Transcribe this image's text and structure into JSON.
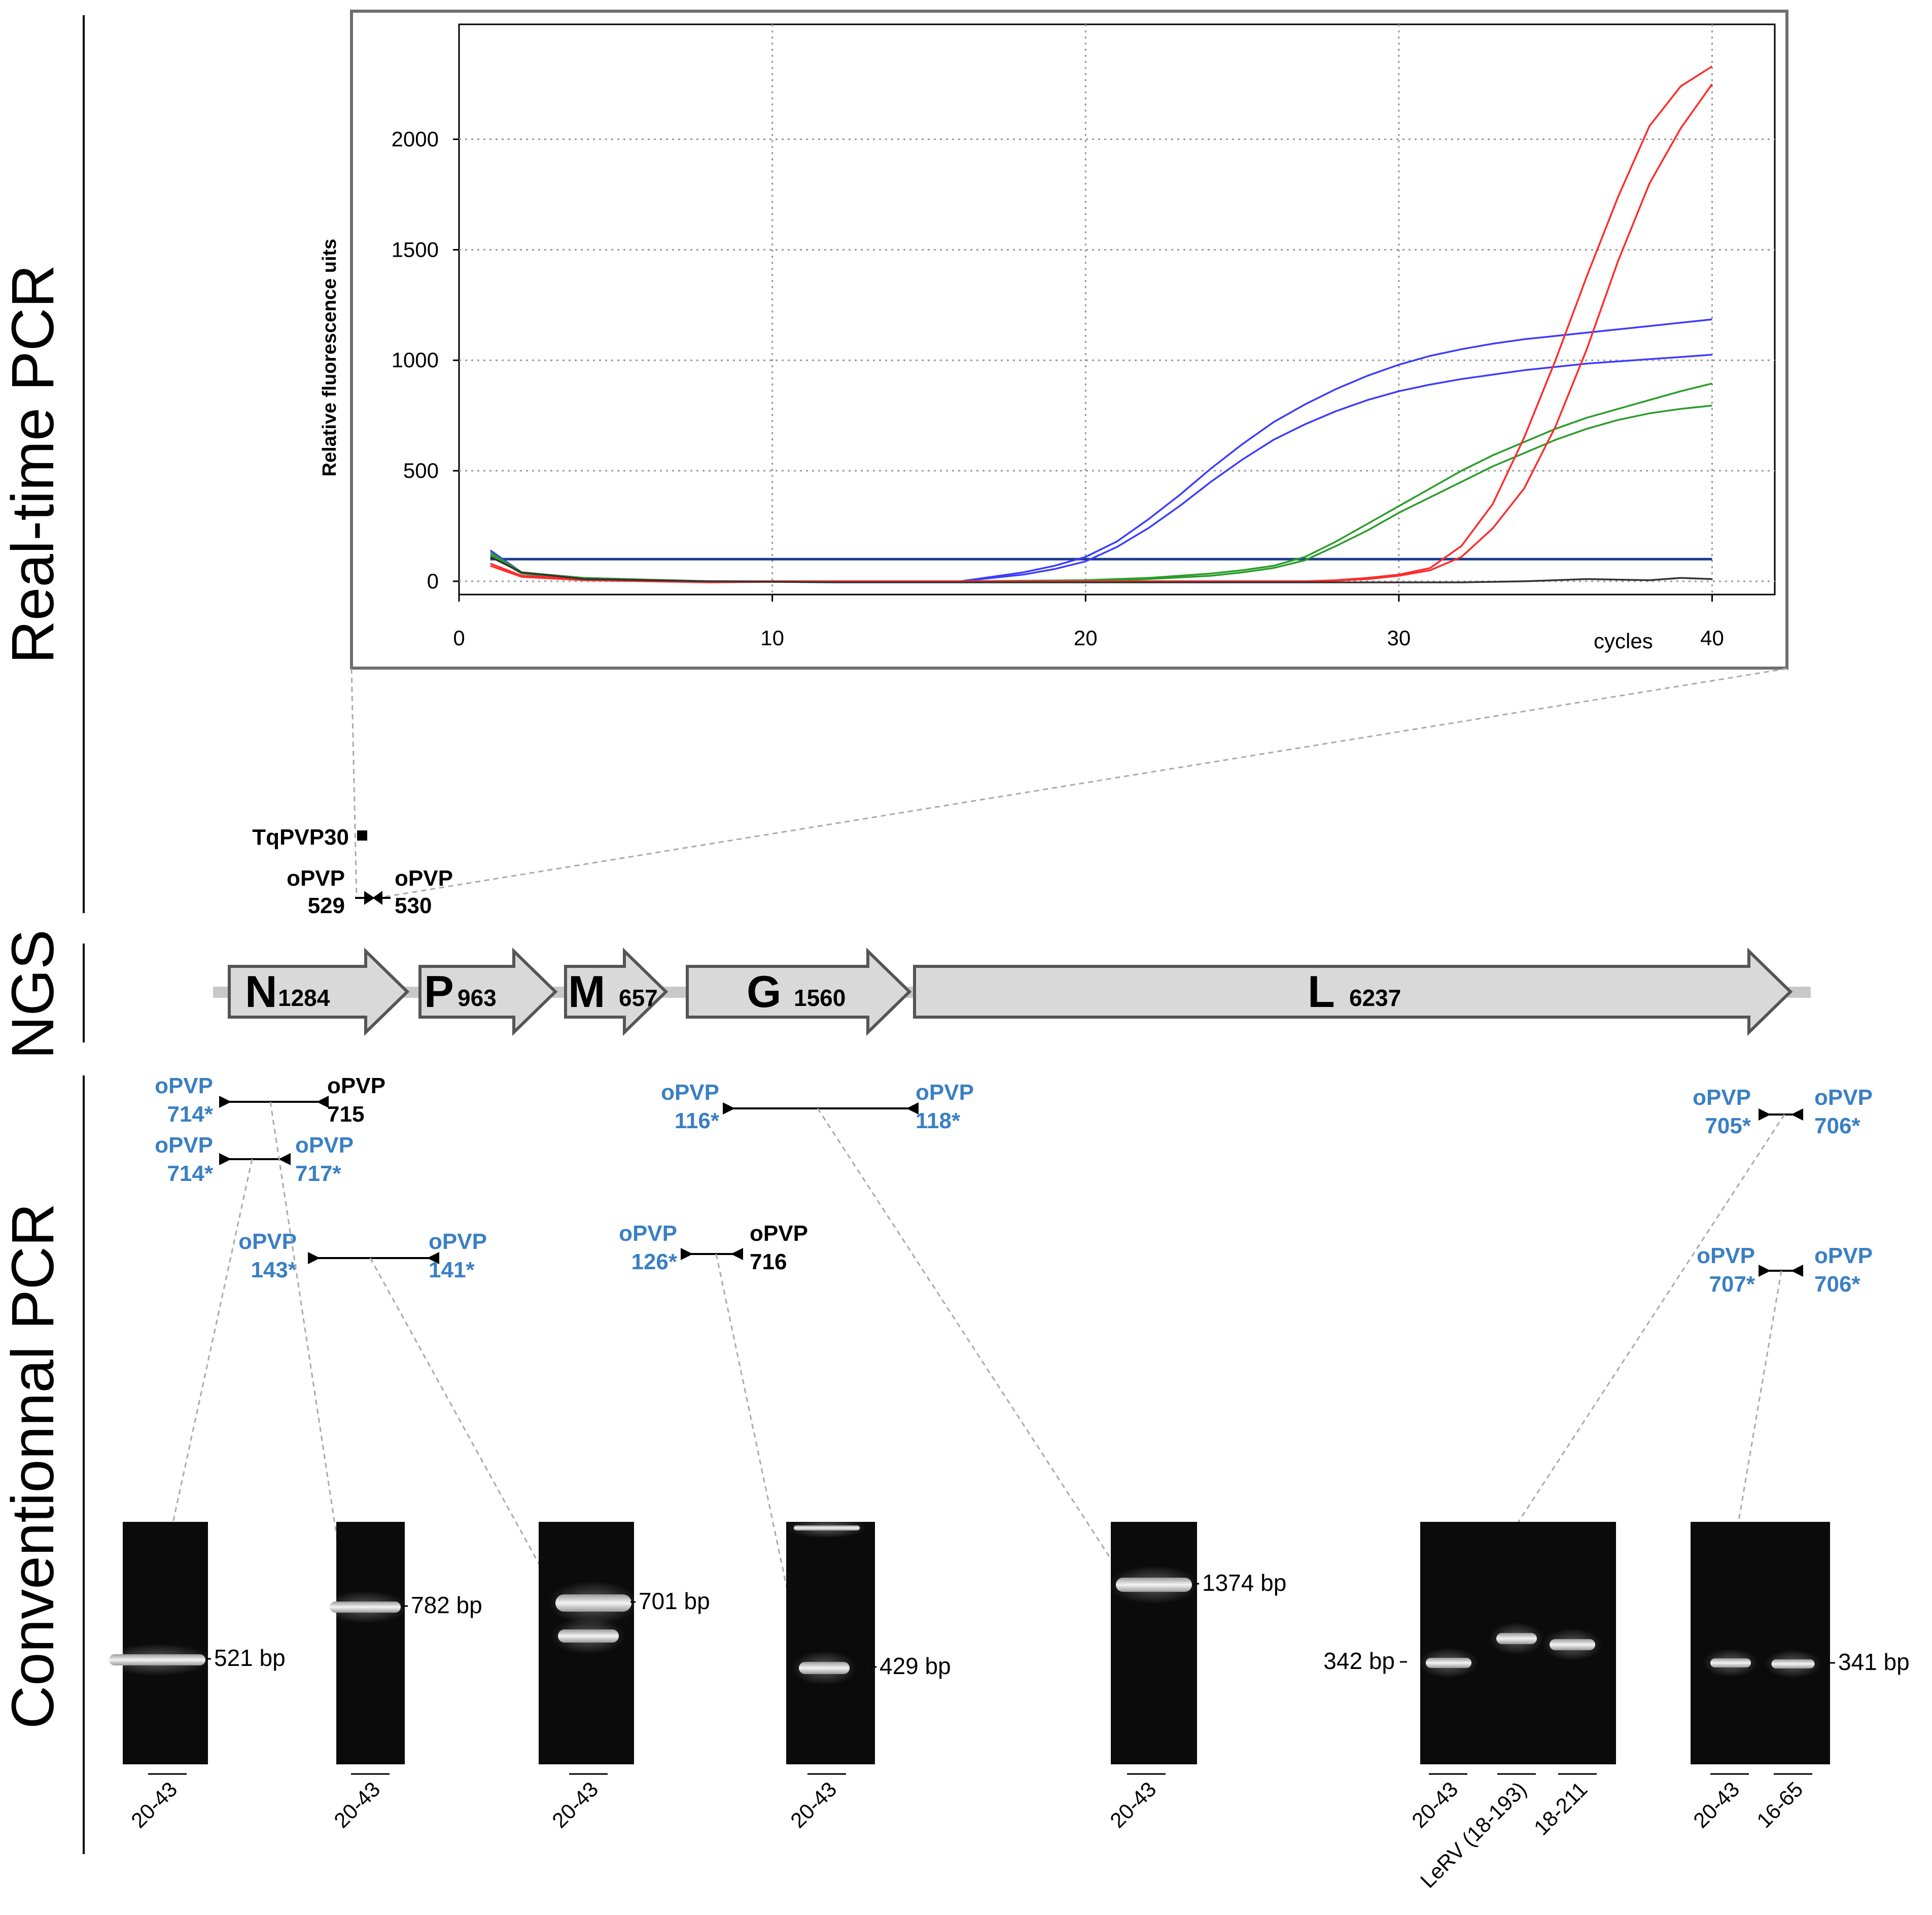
{
  "sections": {
    "realtime": "Real-time PCR",
    "ngs": "NGS",
    "conventional": "Conventionnal PCR"
  },
  "chart_data": {
    "type": "line",
    "xlabel": "cycles",
    "ylabel": "Relative fluorescence uits",
    "xlim": [
      0,
      42
    ],
    "ylim": [
      -60,
      2520
    ],
    "xticks": [
      0,
      10,
      20,
      30,
      40
    ],
    "yticks": [
      0,
      500,
      1000,
      1500,
      2000
    ],
    "grid": true,
    "threshold": 100,
    "series": [
      {
        "color": "#3c3cff",
        "x": [
          1,
          2,
          4,
          8,
          12,
          16,
          18,
          19,
          20,
          21,
          22,
          23,
          24,
          25,
          26,
          27,
          28,
          29,
          30,
          31,
          32,
          33,
          34,
          35,
          36,
          37,
          38,
          39,
          40
        ],
        "values": [
          140,
          40,
          15,
          0,
          0,
          0,
          40,
          70,
          110,
          180,
          280,
          390,
          510,
          620,
          720,
          800,
          870,
          930,
          980,
          1020,
          1050,
          1075,
          1095,
          1110,
          1125,
          1140,
          1155,
          1170,
          1185
        ]
      },
      {
        "color": "#3c3cff",
        "x": [
          1,
          2,
          4,
          8,
          12,
          16,
          18,
          19,
          20,
          21,
          22,
          23,
          24,
          25,
          26,
          27,
          28,
          29,
          30,
          31,
          32,
          33,
          34,
          35,
          36,
          37,
          38,
          39,
          40
        ],
        "values": [
          120,
          35,
          10,
          0,
          0,
          0,
          30,
          55,
          90,
          155,
          240,
          340,
          450,
          550,
          640,
          710,
          770,
          820,
          860,
          890,
          915,
          935,
          955,
          970,
          985,
          995,
          1005,
          1015,
          1025
        ]
      },
      {
        "color": "#2a9c2a",
        "x": [
          1,
          2,
          4,
          8,
          12,
          16,
          20,
          22,
          24,
          25,
          26,
          27,
          28,
          29,
          30,
          31,
          32,
          33,
          34,
          35,
          36,
          37,
          38,
          39,
          40
        ],
        "values": [
          130,
          40,
          15,
          0,
          0,
          0,
          5,
          15,
          35,
          50,
          70,
          110,
          180,
          260,
          340,
          420,
          500,
          570,
          630,
          690,
          740,
          780,
          820,
          860,
          895
        ]
      },
      {
        "color": "#2a9c2a",
        "x": [
          1,
          2,
          4,
          8,
          12,
          16,
          20,
          22,
          24,
          25,
          26,
          27,
          28,
          29,
          30,
          31,
          32,
          33,
          34,
          35,
          36,
          37,
          38,
          39,
          40
        ],
        "values": [
          120,
          35,
          12,
          0,
          0,
          0,
          0,
          10,
          25,
          40,
          60,
          95,
          160,
          230,
          310,
          380,
          450,
          520,
          580,
          640,
          690,
          730,
          760,
          780,
          795
        ]
      },
      {
        "color": "#ff2a2a",
        "x": [
          1,
          2,
          4,
          8,
          12,
          16,
          20,
          24,
          27,
          28,
          29,
          30,
          31,
          32,
          33,
          34,
          35,
          36,
          37,
          38,
          39,
          40
        ],
        "values": [
          80,
          25,
          10,
          0,
          0,
          0,
          0,
          0,
          0,
          5,
          15,
          30,
          60,
          160,
          350,
          650,
          1000,
          1380,
          1740,
          2060,
          2240,
          2330
        ]
      },
      {
        "color": "#ff2a2a",
        "x": [
          1,
          2,
          4,
          8,
          12,
          16,
          20,
          24,
          27,
          28,
          29,
          30,
          31,
          32,
          33,
          34,
          35,
          36,
          37,
          38,
          39,
          40
        ],
        "values": [
          70,
          20,
          5,
          -5,
          0,
          0,
          0,
          0,
          0,
          3,
          10,
          25,
          50,
          110,
          240,
          420,
          700,
          1050,
          1450,
          1800,
          2050,
          2250
        ]
      },
      {
        "color": "#333333",
        "x": [
          1,
          2,
          4,
          8,
          12,
          16,
          20,
          24,
          28,
          32,
          34,
          36,
          38,
          39,
          40
        ],
        "values": [
          110,
          40,
          10,
          0,
          -5,
          -5,
          -5,
          -5,
          -5,
          -5,
          0,
          10,
          5,
          15,
          10
        ]
      }
    ]
  },
  "realtime_probes": {
    "probe": "TqPVP30",
    "fwd": [
      "oPVP",
      "529"
    ],
    "rev": [
      "oPVP",
      "530"
    ]
  },
  "genome": {
    "genes": [
      {
        "name": "N",
        "len": "1284"
      },
      {
        "name": "P",
        "len": "963"
      },
      {
        "name": "M",
        "len": "657"
      },
      {
        "name": "G",
        "len": "1560"
      },
      {
        "name": "L",
        "len": "6237"
      }
    ]
  },
  "primer_pairs": [
    {
      "fwd": [
        "oPVP",
        "714*"
      ],
      "rev": [
        "oPVP",
        "715"
      ],
      "fwd_blue": true,
      "rev_blue": false
    },
    {
      "fwd": [
        "oPVP",
        "714*"
      ],
      "rev": [
        "oPVP",
        "717*"
      ],
      "fwd_blue": true,
      "rev_blue": true
    },
    {
      "fwd": [
        "oPVP",
        "143*"
      ],
      "rev": [
        "oPVP",
        "141*"
      ],
      "fwd_blue": true,
      "rev_blue": true
    },
    {
      "fwd": [
        "oPVP",
        "126*"
      ],
      "rev": [
        "oPVP",
        "716"
      ],
      "fwd_blue": true,
      "rev_blue": false
    },
    {
      "fwd": [
        "oPVP",
        "116*"
      ],
      "rev": [
        "oPVP",
        "118*"
      ],
      "fwd_blue": true,
      "rev_blue": true
    },
    {
      "fwd": [
        "oPVP",
        "705*"
      ],
      "rev": [
        "oPVP",
        "706*"
      ],
      "fwd_blue": true,
      "rev_blue": true
    },
    {
      "fwd": [
        "oPVP",
        "707*"
      ],
      "rev": [
        "oPVP",
        "706*"
      ],
      "fwd_blue": true,
      "rev_blue": true
    }
  ],
  "gels": [
    {
      "size": "521 bp",
      "lanes": [
        "20-43"
      ]
    },
    {
      "size": "782 bp",
      "lanes": [
        "20-43"
      ]
    },
    {
      "size": "701 bp",
      "lanes": [
        "20-43"
      ]
    },
    {
      "size": "429 bp",
      "lanes": [
        "20-43"
      ]
    },
    {
      "size": "1374 bp",
      "lanes": [
        "20-43"
      ]
    },
    {
      "size": "342 bp",
      "lanes": [
        "20-43",
        "LeRV (18-193)",
        "18-211"
      ]
    },
    {
      "size": "341 bp",
      "lanes": [
        "20-43",
        "16-65"
      ]
    }
  ],
  "colors": {
    "blue_label": "#3a7fc4",
    "gene_fill": "#d9d9d9",
    "threshold": "#1a3a8c"
  }
}
